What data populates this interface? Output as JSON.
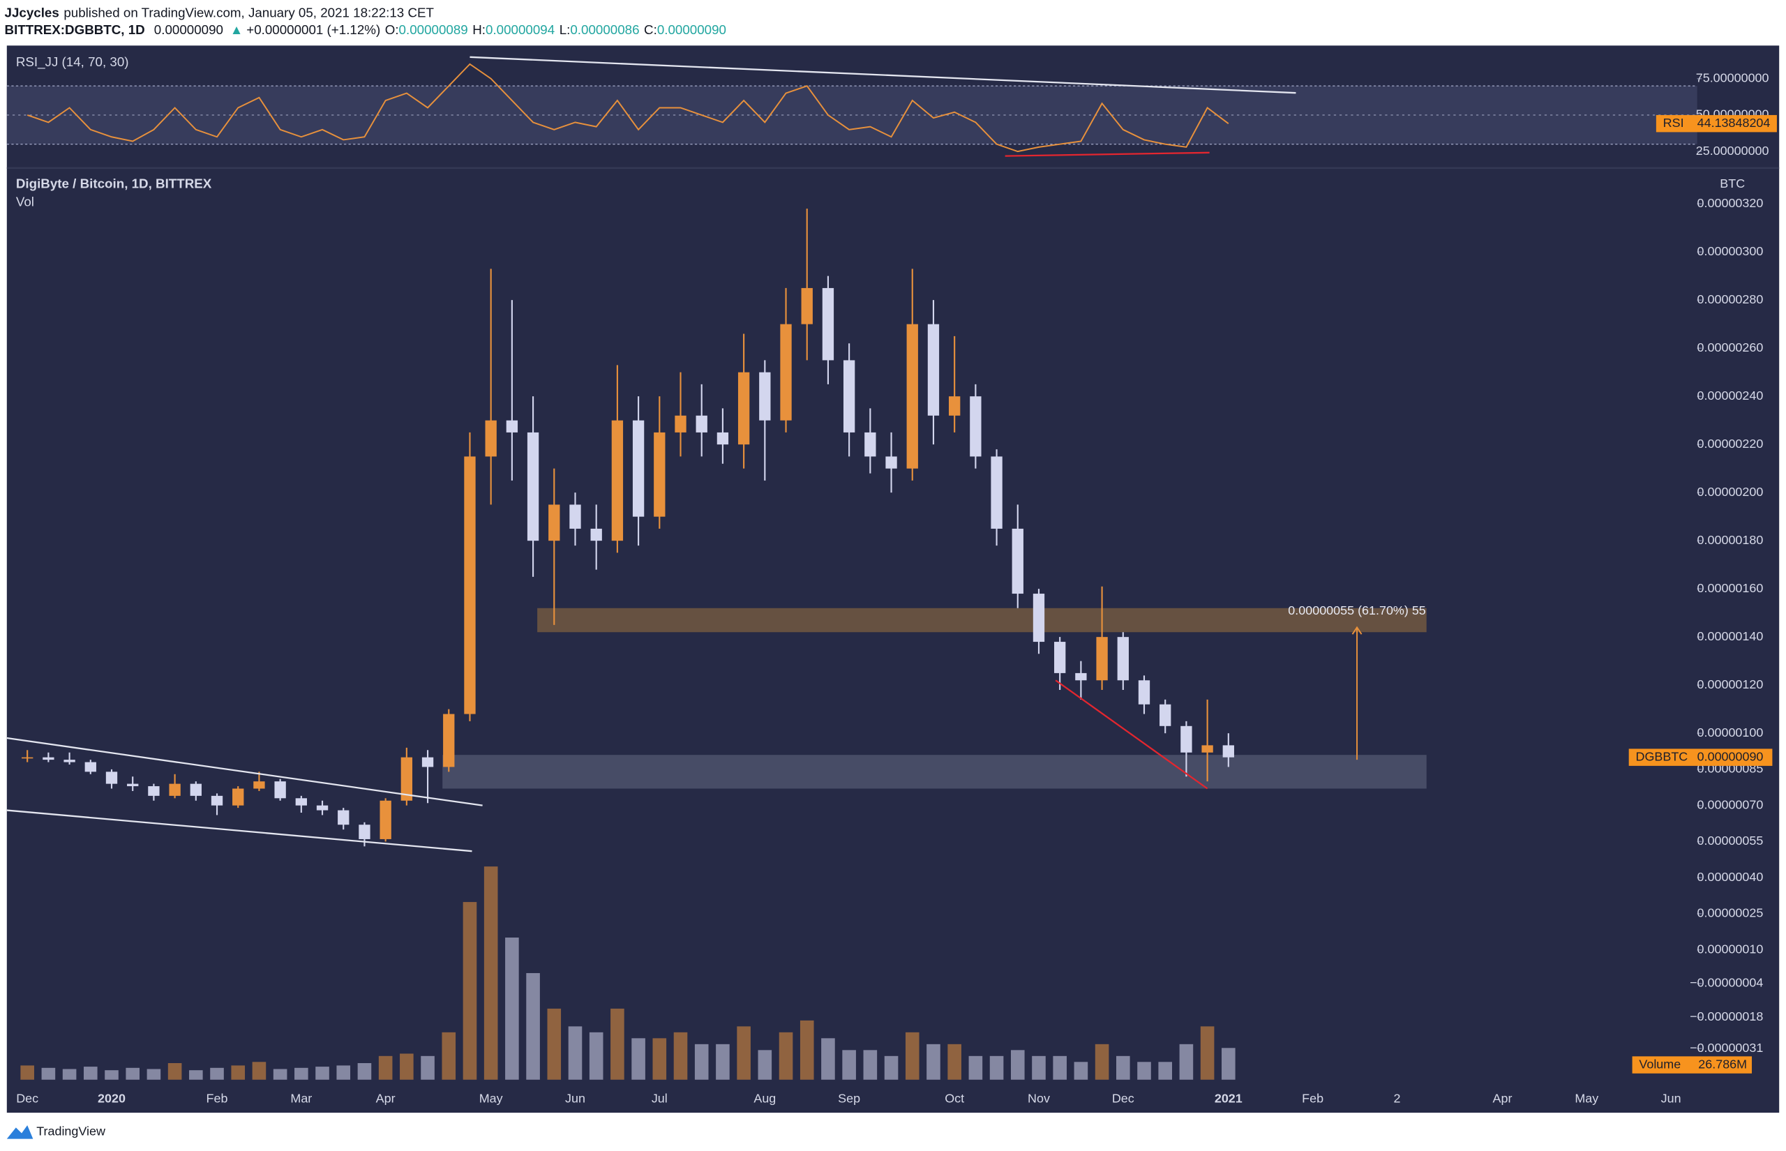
{
  "header": {
    "author": "JJcycles",
    "published": "published on TradingView.com, January 05, 2021 18:22:13 CET",
    "symbol": "BITTREX:DGBBTC, 1D",
    "last": "0.00000090",
    "arrow": "▲",
    "change": "+0.00000001 (+1.12%)",
    "ohlc": [
      {
        "key": "O:",
        "value": "0.00000089"
      },
      {
        "key": "H:",
        "value": "0.00000094"
      },
      {
        "key": "L:",
        "value": "0.00000086"
      },
      {
        "key": "C:",
        "value": "0.00000090"
      }
    ]
  },
  "footer": {
    "brand": "TradingView"
  },
  "chart_data": {
    "type": "candlestick",
    "title": "DigiByte / Bitcoin, 1D, BITTREX",
    "axis_unit": "BTC",
    "categories": [
      "Dec",
      null,
      null,
      null,
      "2020",
      null,
      null,
      null,
      null,
      "Feb",
      null,
      null,
      null,
      "Mar",
      null,
      null,
      null,
      "Apr",
      null,
      null,
      null,
      null,
      "May",
      null,
      null,
      null,
      "Jun",
      null,
      null,
      null,
      "Jul",
      null,
      null,
      null,
      null,
      "Aug",
      null,
      null,
      null,
      "Sep",
      null,
      null,
      null,
      null,
      "Oct",
      null,
      null,
      null,
      "Nov",
      null,
      null,
      null,
      "Dec",
      null,
      null,
      null,
      null,
      "2021",
      null,
      null,
      null,
      "Feb",
      null,
      null,
      null,
      "2",
      null,
      null,
      null,
      null,
      "Apr",
      null,
      null,
      null,
      "May",
      null,
      null,
      null,
      "Jun",
      null
    ],
    "open": [
      9e-07,
      9e-07,
      8.9e-07,
      8.8e-07,
      8.4e-07,
      7.9e-07,
      7.8e-07,
      7.4e-07,
      7.9e-07,
      7.4e-07,
      7e-07,
      7.7e-07,
      8e-07,
      7.3e-07,
      7e-07,
      6.8e-07,
      6.2e-07,
      5.6e-07,
      7.2e-07,
      9e-07,
      8.6e-07,
      1.08e-06,
      2.15e-06,
      2.3e-06,
      2.25e-06,
      1.8e-06,
      1.95e-06,
      1.85e-06,
      1.8e-06,
      2.3e-06,
      1.9e-06,
      2.25e-06,
      2.32e-06,
      2.25e-06,
      2.2e-06,
      2.5e-06,
      2.3e-06,
      2.7e-06,
      2.85e-06,
      2.55e-06,
      2.25e-06,
      2.15e-06,
      2.1e-06,
      2.7e-06,
      2.32e-06,
      2.4e-06,
      2.15e-06,
      1.85e-06,
      1.58e-06,
      1.38e-06,
      1.25e-06,
      1.22e-06,
      1.4e-06,
      1.22e-06,
      1.12e-06,
      1.03e-06,
      9.2e-07,
      9.5e-07,
      null,
      null,
      null,
      null,
      null,
      null,
      null,
      null,
      null,
      null,
      null,
      null,
      null,
      null,
      null,
      null,
      null,
      null,
      null,
      null,
      null,
      null
    ],
    "high": [
      9.3e-07,
      9.2e-07,
      9.2e-07,
      8.9e-07,
      8.5e-07,
      8.2e-07,
      7.9e-07,
      8.3e-07,
      8e-07,
      7.5e-07,
      7.8e-07,
      8.4e-07,
      8.1e-07,
      7.4e-07,
      7.2e-07,
      6.9e-07,
      6.3e-07,
      7.3e-07,
      9.4e-07,
      9.3e-07,
      1.1e-06,
      2.25e-06,
      2.93e-06,
      2.8e-06,
      2.4e-06,
      2.1e-06,
      2e-06,
      1.95e-06,
      2.53e-06,
      2.4e-06,
      2.4e-06,
      2.5e-06,
      2.45e-06,
      2.35e-06,
      2.66e-06,
      2.55e-06,
      2.85e-06,
      3.18e-06,
      2.9e-06,
      2.62e-06,
      2.35e-06,
      2.25e-06,
      2.93e-06,
      2.8e-06,
      2.65e-06,
      2.45e-06,
      2.18e-06,
      1.95e-06,
      1.6e-06,
      1.4e-06,
      1.3e-06,
      1.61e-06,
      1.42e-06,
      1.24e-06,
      1.14e-06,
      1.05e-06,
      1.14e-06,
      1e-06,
      null,
      null,
      null,
      null,
      null,
      null,
      null,
      null,
      null,
      null,
      null,
      null,
      null,
      null,
      null,
      null,
      null,
      null,
      null,
      null,
      null,
      null
    ],
    "low": [
      8.8e-07,
      8.8e-07,
      8.7e-07,
      8.3e-07,
      7.7e-07,
      7.6e-07,
      7.2e-07,
      7.3e-07,
      7.2e-07,
      6.6e-07,
      6.9e-07,
      7.6e-07,
      7.2e-07,
      6.7e-07,
      6.6e-07,
      6e-07,
      5.3e-07,
      5.5e-07,
      7e-07,
      7.1e-07,
      8.4e-07,
      1.05e-06,
      1.95e-06,
      2.05e-06,
      1.65e-06,
      1.45e-06,
      1.78e-06,
      1.68e-06,
      1.75e-06,
      1.78e-06,
      1.85e-06,
      2.15e-06,
      2.15e-06,
      2.12e-06,
      2.1e-06,
      2.05e-06,
      2.25e-06,
      2.55e-06,
      2.45e-06,
      2.15e-06,
      2.08e-06,
      2e-06,
      2.05e-06,
      2.2e-06,
      2.25e-06,
      2.1e-06,
      1.78e-06,
      1.52e-06,
      1.33e-06,
      1.18e-06,
      1.14e-06,
      1.18e-06,
      1.18e-06,
      1.08e-06,
      1e-06,
      8.2e-07,
      8e-07,
      8.6e-07,
      null,
      null,
      null,
      null,
      null,
      null,
      null,
      null,
      null,
      null,
      null,
      null,
      null,
      null,
      null,
      null,
      null,
      null,
      null,
      null,
      null,
      null
    ],
    "close": [
      9e-07,
      8.9e-07,
      8.8e-07,
      8.4e-07,
      7.9e-07,
      7.8e-07,
      7.4e-07,
      7.9e-07,
      7.4e-07,
      7e-07,
      7.7e-07,
      8e-07,
      7.3e-07,
      7e-07,
      6.8e-07,
      6.2e-07,
      5.6e-07,
      7.2e-07,
      9e-07,
      8.6e-07,
      1.08e-06,
      2.15e-06,
      2.3e-06,
      2.25e-06,
      1.8e-06,
      1.95e-06,
      1.85e-06,
      1.8e-06,
      2.3e-06,
      1.9e-06,
      2.25e-06,
      2.32e-06,
      2.25e-06,
      2.2e-06,
      2.5e-06,
      2.3e-06,
      2.7e-06,
      2.85e-06,
      2.55e-06,
      2.25e-06,
      2.15e-06,
      2.1e-06,
      2.7e-06,
      2.32e-06,
      2.4e-06,
      2.15e-06,
      1.85e-06,
      1.58e-06,
      1.38e-06,
      1.25e-06,
      1.22e-06,
      1.4e-06,
      1.22e-06,
      1.12e-06,
      1.03e-06,
      9.2e-07,
      9.5e-07,
      9e-07,
      null,
      null,
      null,
      null,
      null,
      null,
      null,
      null,
      null,
      null,
      null,
      null,
      null,
      null,
      null,
      null,
      null,
      null,
      null,
      null,
      null,
      null
    ],
    "up_color": "#e8913c",
    "down_color": "#d3d6ee",
    "ylim": [
      -4.49e-07,
      3.337e-06
    ],
    "yticks": [
      {
        "value": 3.2e-06,
        "label": "0.00000320"
      },
      {
        "value": 3e-06,
        "label": "0.00000300"
      },
      {
        "value": 2.8e-06,
        "label": "0.00000280"
      },
      {
        "value": 2.6e-06,
        "label": "0.00000260"
      },
      {
        "value": 2.4e-06,
        "label": "0.00000240"
      },
      {
        "value": 2.2e-06,
        "label": "0.00000220"
      },
      {
        "value": 2e-06,
        "label": "0.00000200"
      },
      {
        "value": 1.8e-06,
        "label": "0.00000180"
      },
      {
        "value": 1.6e-06,
        "label": "0.00000160"
      },
      {
        "value": 1.4e-06,
        "label": "0.00000140"
      },
      {
        "value": 1.2e-06,
        "label": "0.00000120"
      },
      {
        "value": 1e-06,
        "label": "0.00000100"
      },
      {
        "value": 8.5e-07,
        "label": "0.00000085"
      },
      {
        "value": 7e-07,
        "label": "0.00000070"
      },
      {
        "value": 5.5e-07,
        "label": "0.00000055"
      },
      {
        "value": 4e-07,
        "label": "0.00000040"
      },
      {
        "value": 2.5e-07,
        "label": "0.00000025"
      },
      {
        "value": 1e-07,
        "label": "0.00000010"
      },
      {
        "value": -4e-08,
        "label": "−0.00000004"
      },
      {
        "value": -1.8e-07,
        "label": "−0.00000018"
      },
      {
        "value": -3.1e-07,
        "label": "−0.00000031"
      }
    ],
    "grid": false,
    "last_price": {
      "symbol": "DGBBTC",
      "value_label": "0.00000090"
    },
    "zones": [
      {
        "color": "#6e5540",
        "x": [
          24.2,
          66.4
        ],
        "y": [
          1.42e-06,
          1.52e-06
        ]
      },
      {
        "color": "#4b5069",
        "x": [
          19.7,
          66.4
        ],
        "y": [
          7.7e-07,
          9.1e-07
        ]
      }
    ],
    "trendlines": [
      {
        "color": "#e4e6f0",
        "from": [
          -0.97,
          9.8e-07
        ],
        "to": [
          21.6,
          7e-07
        ]
      },
      {
        "color": "#e4e6f0",
        "from": [
          -0.97,
          6.8e-07
        ],
        "to": [
          21.1,
          5.1e-07
        ]
      },
      {
        "color": "#e3262f",
        "from": [
          48.8,
          1.22e-06
        ],
        "to": [
          56.0,
          7.7e-07
        ]
      }
    ],
    "measure": {
      "color": "#e8913c",
      "x": 63.1,
      "from": 8.9e-07,
      "to": 1.44e-06,
      "label": "0.00000055 (61.70%) 55"
    },
    "volume": {
      "name": "Vol",
      "badge_name": "Volume",
      "last_value_label": "26.786M",
      "ylim": [
        0,
        200
      ],
      "values": [
        12,
        10,
        9,
        11,
        8,
        10,
        9,
        14,
        8,
        10,
        12,
        15,
        9,
        10,
        11,
        12,
        14,
        20,
        22,
        20,
        40,
        150,
        180,
        120,
        90,
        60,
        45,
        40,
        60,
        35,
        35,
        40,
        30,
        30,
        45,
        25,
        40,
        50,
        35,
        25,
        25,
        20,
        40,
        30,
        30,
        20,
        20,
        25,
        20,
        20,
        15,
        30,
        20,
        15,
        15,
        30,
        45,
        26.786,
        null,
        null,
        null,
        null,
        null,
        null,
        null,
        null,
        null,
        null,
        null,
        null,
        null,
        null,
        null,
        null,
        null,
        null,
        null,
        null,
        null,
        null
      ]
    },
    "rsi": {
      "title": "RSI_JJ (14, 70, 30)",
      "badge_name": "RSI",
      "color": "#e8913c",
      "band_color": "#3b4060",
      "ylim": [
        15.6,
        97.7
      ],
      "bands": [
        30,
        70
      ],
      "midline": 50,
      "yticks": [
        {
          "value": 75,
          "label": "75.00000000"
        },
        {
          "value": 50,
          "label": "50.00000000"
        },
        {
          "value": 25,
          "label": "25.00000000"
        }
      ],
      "values": [
        50,
        45,
        55,
        40,
        35,
        32,
        40,
        55,
        40,
        35,
        55,
        62,
        40,
        35,
        40,
        33,
        35,
        60,
        65,
        55,
        70,
        85,
        75,
        60,
        45,
        40,
        45,
        42,
        60,
        40,
        55,
        55,
        50,
        45,
        60,
        45,
        65,
        70,
        50,
        40,
        42,
        35,
        60,
        48,
        52,
        45,
        30,
        25,
        28,
        30,
        32,
        58,
        40,
        33,
        30,
        28,
        55,
        44.13848204,
        null,
        null,
        null,
        null,
        null,
        null,
        null,
        null,
        null,
        null,
        null,
        null,
        null,
        null,
        null,
        null,
        null,
        null,
        null,
        null,
        null,
        null
      ],
      "trendlines": [
        {
          "color": "#e4e6f0",
          "from": [
            21.0,
            89.8
          ],
          "to": [
            60.2,
            65.2
          ]
        },
        {
          "color": "#e3262f",
          "from": [
            46.4,
            21.9
          ],
          "to": [
            56.1,
            24.2
          ]
        }
      ]
    }
  }
}
